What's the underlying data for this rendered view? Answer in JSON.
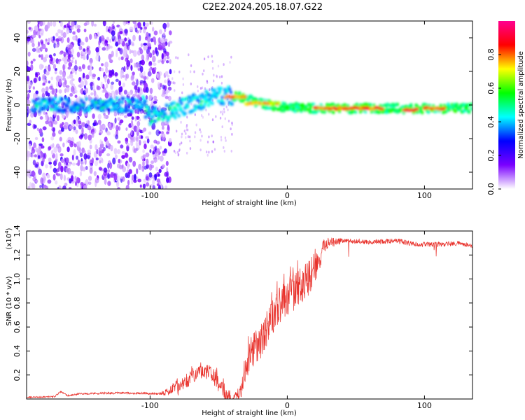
{
  "title": "C2E2.2024.205.18.07.G22",
  "chart_data": [
    {
      "type": "heatmap",
      "name": "spectrogram",
      "xlabel": "Height of straight line (km)",
      "ylabel": "Frequency (Hz)",
      "xlim": [
        -190,
        135
      ],
      "ylim": [
        -50,
        50
      ],
      "xticks": [
        -100,
        0,
        100
      ],
      "xtick_labels": [
        "-100",
        "0",
        "100"
      ],
      "yticks": [
        -40,
        -20,
        0,
        20,
        40
      ],
      "ytick_labels": [
        "-40",
        "-20",
        "0",
        "20",
        "40"
      ],
      "colorbar": {
        "label": "Normalized spectral amplitude",
        "range": [
          0,
          1
        ],
        "ticks": [
          0.0,
          0.2,
          0.4,
          0.6,
          0.8
        ],
        "tick_labels": [
          "0.0",
          "0.2",
          "0.4",
          "0.6",
          "0.8"
        ],
        "colors": [
          "#ffffff",
          "#7a00ff",
          "#0000ff",
          "#00ffff",
          "#00ff00",
          "#ffff00",
          "#ff0000",
          "#ff0090"
        ]
      },
      "ridge_line": [
        {
          "x": -190,
          "y": 0
        },
        {
          "x": -105,
          "y": 0
        },
        {
          "x": -100,
          "y": -7
        },
        {
          "x": -85,
          "y": -4
        },
        {
          "x": -70,
          "y": 1
        },
        {
          "x": -55,
          "y": 4
        },
        {
          "x": -45,
          "y": 6
        },
        {
          "x": -30,
          "y": 4
        },
        {
          "x": -20,
          "y": 1
        },
        {
          "x": -5,
          "y": -1
        },
        {
          "x": 20,
          "y": -2
        },
        {
          "x": 135,
          "y": -2
        }
      ],
      "bright_segments": [
        {
          "x0": -45,
          "x1": -30,
          "y": 5,
          "level": 0.85
        },
        {
          "x0": -30,
          "x1": -5,
          "y": 1,
          "level": 0.8
        },
        {
          "x0": 20,
          "x1": 70,
          "y": -2,
          "level": 0.9
        },
        {
          "x0": 85,
          "x1": 95,
          "y": -3,
          "level": 0.95
        },
        {
          "x0": 100,
          "x1": 115,
          "y": -2,
          "level": 0.9
        }
      ]
    },
    {
      "type": "line",
      "name": "snr",
      "xlabel": "Height of straight line (km)",
      "ylabel": "SNR (10 * v/v)",
      "y_multiplier_label": "(x10",
      "y_multiplier_exp": "4",
      "y_multiplier_close": ")",
      "xlim": [
        -190,
        135
      ],
      "ylim": [
        0,
        14000
      ],
      "xticks": [
        -100,
        0,
        100
      ],
      "xtick_labels": [
        "-100",
        "0",
        "100"
      ],
      "yticks": [
        2000,
        4000,
        6000,
        8000,
        10000,
        12000,
        14000
      ],
      "ytick_labels": [
        "0.2",
        "0.4",
        "0.6",
        "0.8",
        "1.0",
        "1.2",
        "1.4"
      ],
      "color": "#e8302a",
      "envelope": [
        {
          "x": -190,
          "y": 150
        },
        {
          "x": -170,
          "y": 200
        },
        {
          "x": -165,
          "y": 600
        },
        {
          "x": -160,
          "y": 300
        },
        {
          "x": -150,
          "y": 450
        },
        {
          "x": -130,
          "y": 500
        },
        {
          "x": -110,
          "y": 500
        },
        {
          "x": -95,
          "y": 450
        },
        {
          "x": -85,
          "y": 700
        },
        {
          "x": -75,
          "y": 2000
        },
        {
          "x": -65,
          "y": 2700
        },
        {
          "x": -58,
          "y": 3000
        },
        {
          "x": -50,
          "y": 2000
        },
        {
          "x": -45,
          "y": 1200
        },
        {
          "x": -40,
          "y": 300
        },
        {
          "x": -35,
          "y": 1000
        },
        {
          "x": -30,
          "y": 4000
        },
        {
          "x": -25,
          "y": 5600
        },
        {
          "x": -20,
          "y": 6000
        },
        {
          "x": -15,
          "y": 7200
        },
        {
          "x": -10,
          "y": 8600
        },
        {
          "x": -5,
          "y": 9400
        },
        {
          "x": 0,
          "y": 10000
        },
        {
          "x": 5,
          "y": 10500
        },
        {
          "x": 10,
          "y": 11000
        },
        {
          "x": 15,
          "y": 11600
        },
        {
          "x": 20,
          "y": 12100
        },
        {
          "x": 25,
          "y": 12600
        },
        {
          "x": 30,
          "y": 13000
        },
        {
          "x": 40,
          "y": 13200
        },
        {
          "x": 60,
          "y": 13100
        },
        {
          "x": 80,
          "y": 13200
        },
        {
          "x": 95,
          "y": 12900
        },
        {
          "x": 110,
          "y": 12900
        },
        {
          "x": 125,
          "y": 13000
        },
        {
          "x": 135,
          "y": 12800
        }
      ],
      "noise_amplitude": [
        {
          "x": -190,
          "y": 80
        },
        {
          "x": -95,
          "y": 120
        },
        {
          "x": -80,
          "y": 700
        },
        {
          "x": -45,
          "y": 900
        },
        {
          "x": -38,
          "y": 300
        },
        {
          "x": -30,
          "y": 1800
        },
        {
          "x": 15,
          "y": 2000
        },
        {
          "x": 28,
          "y": 700
        },
        {
          "x": 40,
          "y": 250
        },
        {
          "x": 135,
          "y": 250
        }
      ]
    }
  ]
}
